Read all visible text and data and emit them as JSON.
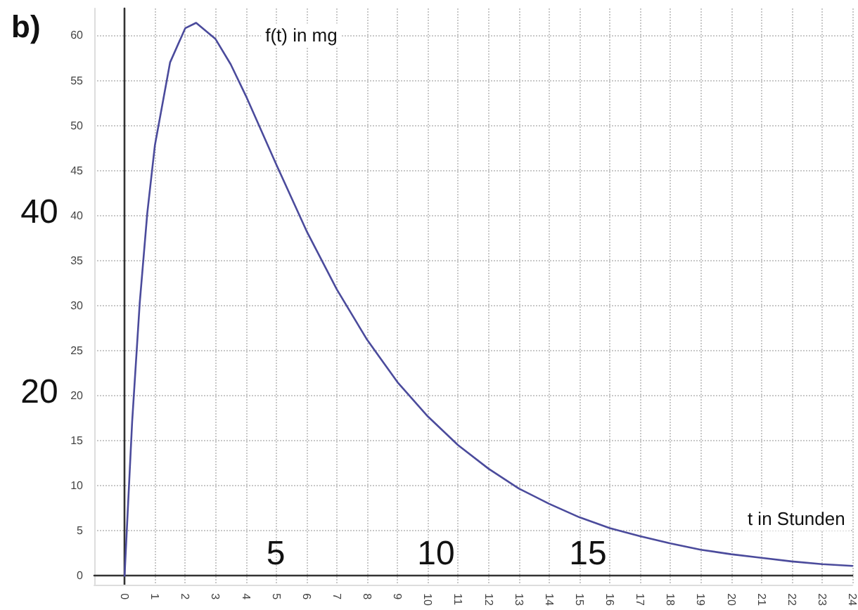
{
  "chart_data": {
    "type": "line",
    "title": "b)",
    "xlabel": "t in Stunden",
    "ylabel": "f(t) in mg",
    "x": [
      0,
      0.25,
      0.5,
      0.75,
      1,
      1.5,
      2,
      2.36,
      3,
      3.5,
      4,
      5,
      6,
      7,
      8,
      9,
      10,
      11,
      12,
      13,
      14,
      15,
      16,
      17,
      18,
      19,
      20,
      21,
      22,
      23,
      24
    ],
    "series": [
      {
        "color": "#4b4b9c",
        "values": [
          0,
          17.1,
          30.3,
          40.3,
          47.8,
          57.0,
          60.8,
          61.4,
          59.6,
          56.8,
          53.3,
          45.7,
          38.3,
          31.8,
          26.2,
          21.5,
          17.7,
          14.5,
          11.9,
          9.7,
          8.0,
          6.5,
          5.3,
          4.4,
          3.6,
          2.9,
          2.4,
          2.0,
          1.6,
          1.3,
          1.1
        ]
      }
    ],
    "xlim": [
      -1,
      24
    ],
    "xticks": [
      0,
      1,
      2,
      3,
      4,
      5,
      6,
      7,
      8,
      9,
      10,
      11,
      12,
      13,
      14,
      15,
      16,
      17,
      18,
      19,
      20,
      21,
      22,
      23,
      24
    ],
    "ylim": [
      -1,
      63
    ],
    "yticks": [
      0,
      5,
      10,
      15,
      20,
      25,
      30,
      35,
      40,
      45,
      50,
      55,
      60
    ],
    "annotations": [
      "40",
      "20",
      "5",
      "10",
      "15"
    ],
    "grid": true,
    "marker": "none",
    "line_style": "solid"
  }
}
